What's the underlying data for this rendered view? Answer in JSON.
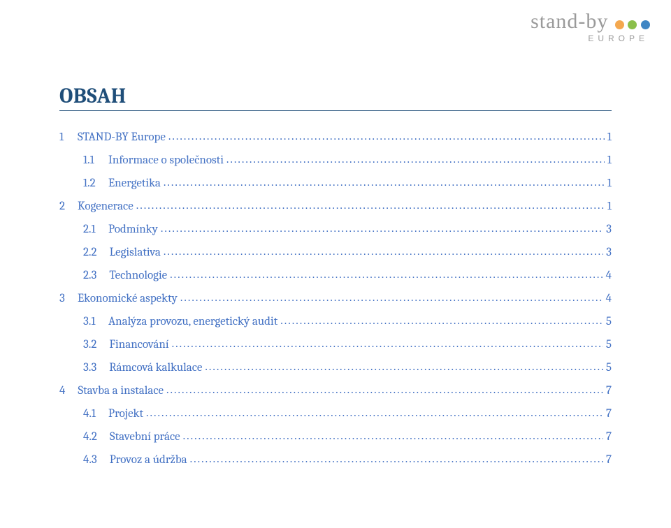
{
  "logo": {
    "brand": "stand-by",
    "subline": "EUROPE",
    "dot_colors": [
      "#f4a84f",
      "#8bbf4a",
      "#3f86c4"
    ],
    "text_color": "#9a9a9a"
  },
  "heading": "OBSAH",
  "heading_color": "#1f4e79",
  "toc_color": "#4472c4",
  "toc": [
    {
      "level": 1,
      "num": "1",
      "title": "STAND-BY Europe",
      "page": "1"
    },
    {
      "level": 2,
      "num": "1.1",
      "title": "Informace o společnosti",
      "page": "1"
    },
    {
      "level": 2,
      "num": "1.2",
      "title": "Energetika",
      "page": "1"
    },
    {
      "level": 1,
      "num": "2",
      "title": "Kogenerace",
      "page": "1"
    },
    {
      "level": 2,
      "num": "2.1",
      "title": "Podmínky",
      "page": "3"
    },
    {
      "level": 2,
      "num": "2.2",
      "title": "Legislativa",
      "page": "3"
    },
    {
      "level": 2,
      "num": "2.3",
      "title": "Technologie",
      "page": "4"
    },
    {
      "level": 1,
      "num": "3",
      "title": "Ekonomické aspekty",
      "page": "4"
    },
    {
      "level": 2,
      "num": "3.1",
      "title": "Analýza provozu, energetický audit",
      "page": "5"
    },
    {
      "level": 2,
      "num": "3.2",
      "title": "Financování",
      "page": "5"
    },
    {
      "level": 2,
      "num": "3.3",
      "title": "Rámcová kalkulace",
      "page": "5"
    },
    {
      "level": 1,
      "num": "4",
      "title": "Stavba a instalace",
      "page": "7"
    },
    {
      "level": 2,
      "num": "4.1",
      "title": "Projekt",
      "page": "7"
    },
    {
      "level": 2,
      "num": "4.2",
      "title": "Stavební práce",
      "page": "7"
    },
    {
      "level": 2,
      "num": "4.3",
      "title": "Provoz a údržba",
      "page": "7"
    }
  ]
}
